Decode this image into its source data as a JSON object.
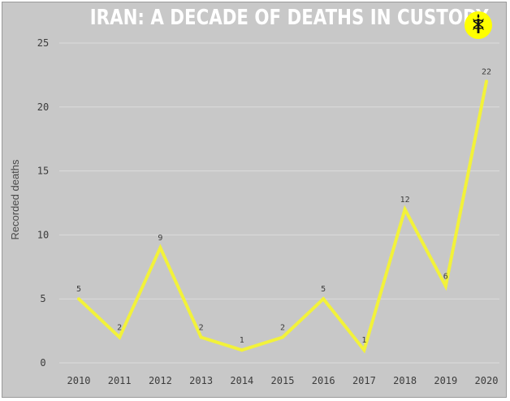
{
  "header": {
    "title": "IRAN: A DECADE OF DEATHS IN CUSTODY",
    "logo_icon": "candle-in-barbed-wire-icon"
  },
  "colors": {
    "background": "#c8c8c8",
    "line": "#f2f23a",
    "grid": "#dcdcdc",
    "logo_fill": "#ffff00"
  },
  "chart_data": {
    "type": "line",
    "title": "IRAN: A DECADE OF DEATHS IN CUSTODY",
    "xlabel": "",
    "ylabel": "Recorded deaths",
    "categories": [
      "2010",
      "2011",
      "2012",
      "2013",
      "2014",
      "2015",
      "2016",
      "2017",
      "2018",
      "2019",
      "2020"
    ],
    "series": [
      {
        "values": [
          5,
          2,
          9,
          2,
          1,
          2,
          5,
          1,
          12,
          6,
          22
        ]
      }
    ],
    "yticks": [
      0,
      5,
      10,
      15,
      20,
      25
    ],
    "ylim": [
      0,
      25
    ],
    "grid": true,
    "data_labels": true
  }
}
